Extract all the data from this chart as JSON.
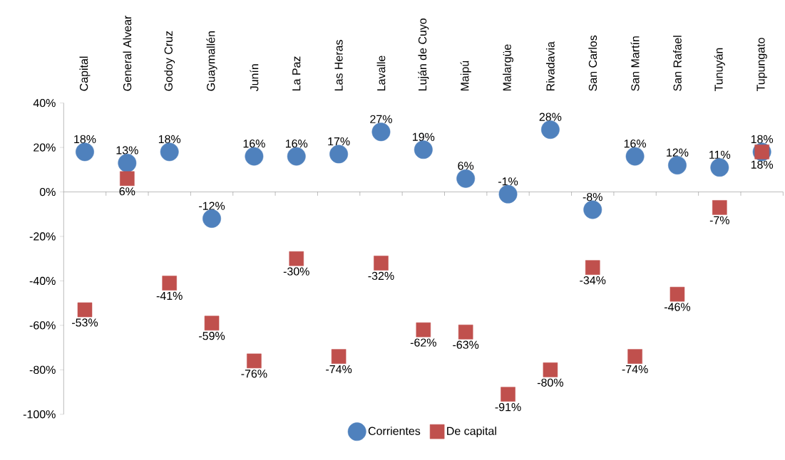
{
  "chart_data": {
    "type": "scatter",
    "categories": [
      "Capital",
      "General Alvear",
      "Godoy Cruz",
      "Guaymallén",
      "Junín",
      "La Paz",
      "Las Heras",
      "Lavalle",
      "Luján de Cuyo",
      "Maipú",
      "Malargüe",
      "Rivadavia",
      "San Carlos",
      "San Martín",
      "San Rafael",
      "Tunuyán",
      "Tupungato"
    ],
    "series": [
      {
        "name": "Corrientes",
        "color": "#4f81bd",
        "marker": "circle",
        "values": [
          18,
          13,
          18,
          -12,
          16,
          16,
          17,
          27,
          19,
          6,
          -1,
          28,
          -8,
          16,
          12,
          11,
          18
        ],
        "value_labels": [
          "18%",
          "13%",
          "18%",
          "-12%",
          "16%",
          "16%",
          "17%",
          "27%",
          "19%",
          "6%",
          "-1%",
          "28%",
          "-8%",
          "16%",
          "12%",
          "11%",
          "18%"
        ]
      },
      {
        "name": "De capital",
        "color": "#c0504d",
        "marker": "square",
        "values": [
          -53,
          6,
          -41,
          -59,
          -76,
          -30,
          -74,
          -32,
          -62,
          -63,
          -91,
          -80,
          -34,
          -74,
          -46,
          -7,
          18
        ],
        "value_labels": [
          "-53%",
          "6%",
          "-41%",
          "-59%",
          "-76%",
          "-30%",
          "-74%",
          "-32%",
          "-62%",
          "-63%",
          "-91%",
          "-80%",
          "-34%",
          "-74%",
          "-46%",
          "-7%",
          "18%"
        ]
      }
    ],
    "ylim": [
      -100,
      40
    ],
    "yticks": [
      {
        "value": -100,
        "label": "-100%"
      },
      {
        "value": -80,
        "label": "-80%"
      },
      {
        "value": -60,
        "label": "-60%"
      },
      {
        "value": -40,
        "label": "-40%"
      },
      {
        "value": -20,
        "label": "-20%"
      },
      {
        "value": 0,
        "label": "0%"
      },
      {
        "value": 20,
        "label": "20%"
      },
      {
        "value": 40,
        "label": "40%"
      }
    ],
    "grid": false,
    "ref_lines": [
      {
        "axis": "y",
        "value": 0,
        "color": "#808080"
      }
    ],
    "legend": "bottom"
  }
}
